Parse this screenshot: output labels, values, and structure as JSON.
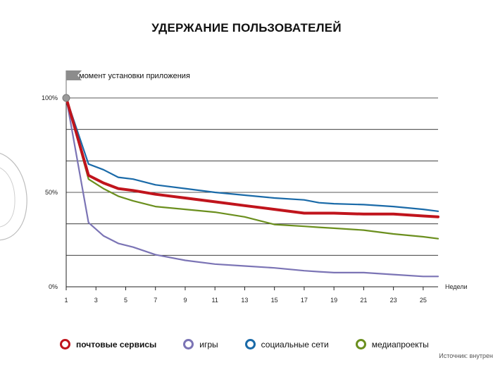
{
  "chart_data": {
    "type": "line",
    "title": "УДЕРЖАНИЕ ПОЛЬЗОВАТЕЛЕЙ",
    "annotation": "момент установки приложения",
    "xlabel": "Недели",
    "ylabel": "",
    "x_ticks": [
      1,
      3,
      5,
      7,
      9,
      11,
      13,
      15,
      17,
      19,
      21,
      23,
      25
    ],
    "y_ticks": [
      "0%",
      "50%",
      "100%"
    ],
    "xlim": [
      1,
      26
    ],
    "ylim": [
      0,
      100
    ],
    "x": [
      1,
      2.5,
      3.5,
      4.5,
      5.5,
      7,
      9,
      11,
      13,
      15,
      17,
      18,
      19,
      21,
      23,
      25,
      26
    ],
    "series": [
      {
        "name": "почтовые сервисы",
        "color": "#c0141c",
        "values": [
          100,
          59,
          55,
          52,
          51,
          49,
          47,
          45,
          43,
          41,
          39,
          39,
          39,
          38.5,
          38.5,
          37.5,
          37
        ]
      },
      {
        "name": "игры",
        "color": "#7b74b5",
        "values": [
          100,
          34,
          27,
          23,
          21,
          17,
          14,
          12,
          11,
          10,
          8.5,
          8,
          7.5,
          7.5,
          6.5,
          5.5,
          5.5
        ]
      },
      {
        "name": "социальные сети",
        "color": "#1a6aa8",
        "values": [
          100,
          65,
          62,
          58,
          57,
          54,
          52,
          50,
          48.5,
          47,
          46,
          44.5,
          44,
          43.5,
          42.5,
          41,
          40
        ]
      },
      {
        "name": "медиапроекты",
        "color": "#6b8f1e",
        "values": [
          100,
          57,
          52,
          48,
          45.5,
          42.5,
          41,
          39.5,
          37,
          33,
          32,
          31.5,
          31,
          30,
          28,
          26.5,
          25.5
        ]
      }
    ],
    "grid": true,
    "legend_position": "bottom"
  },
  "source": "Источник: внутрен"
}
